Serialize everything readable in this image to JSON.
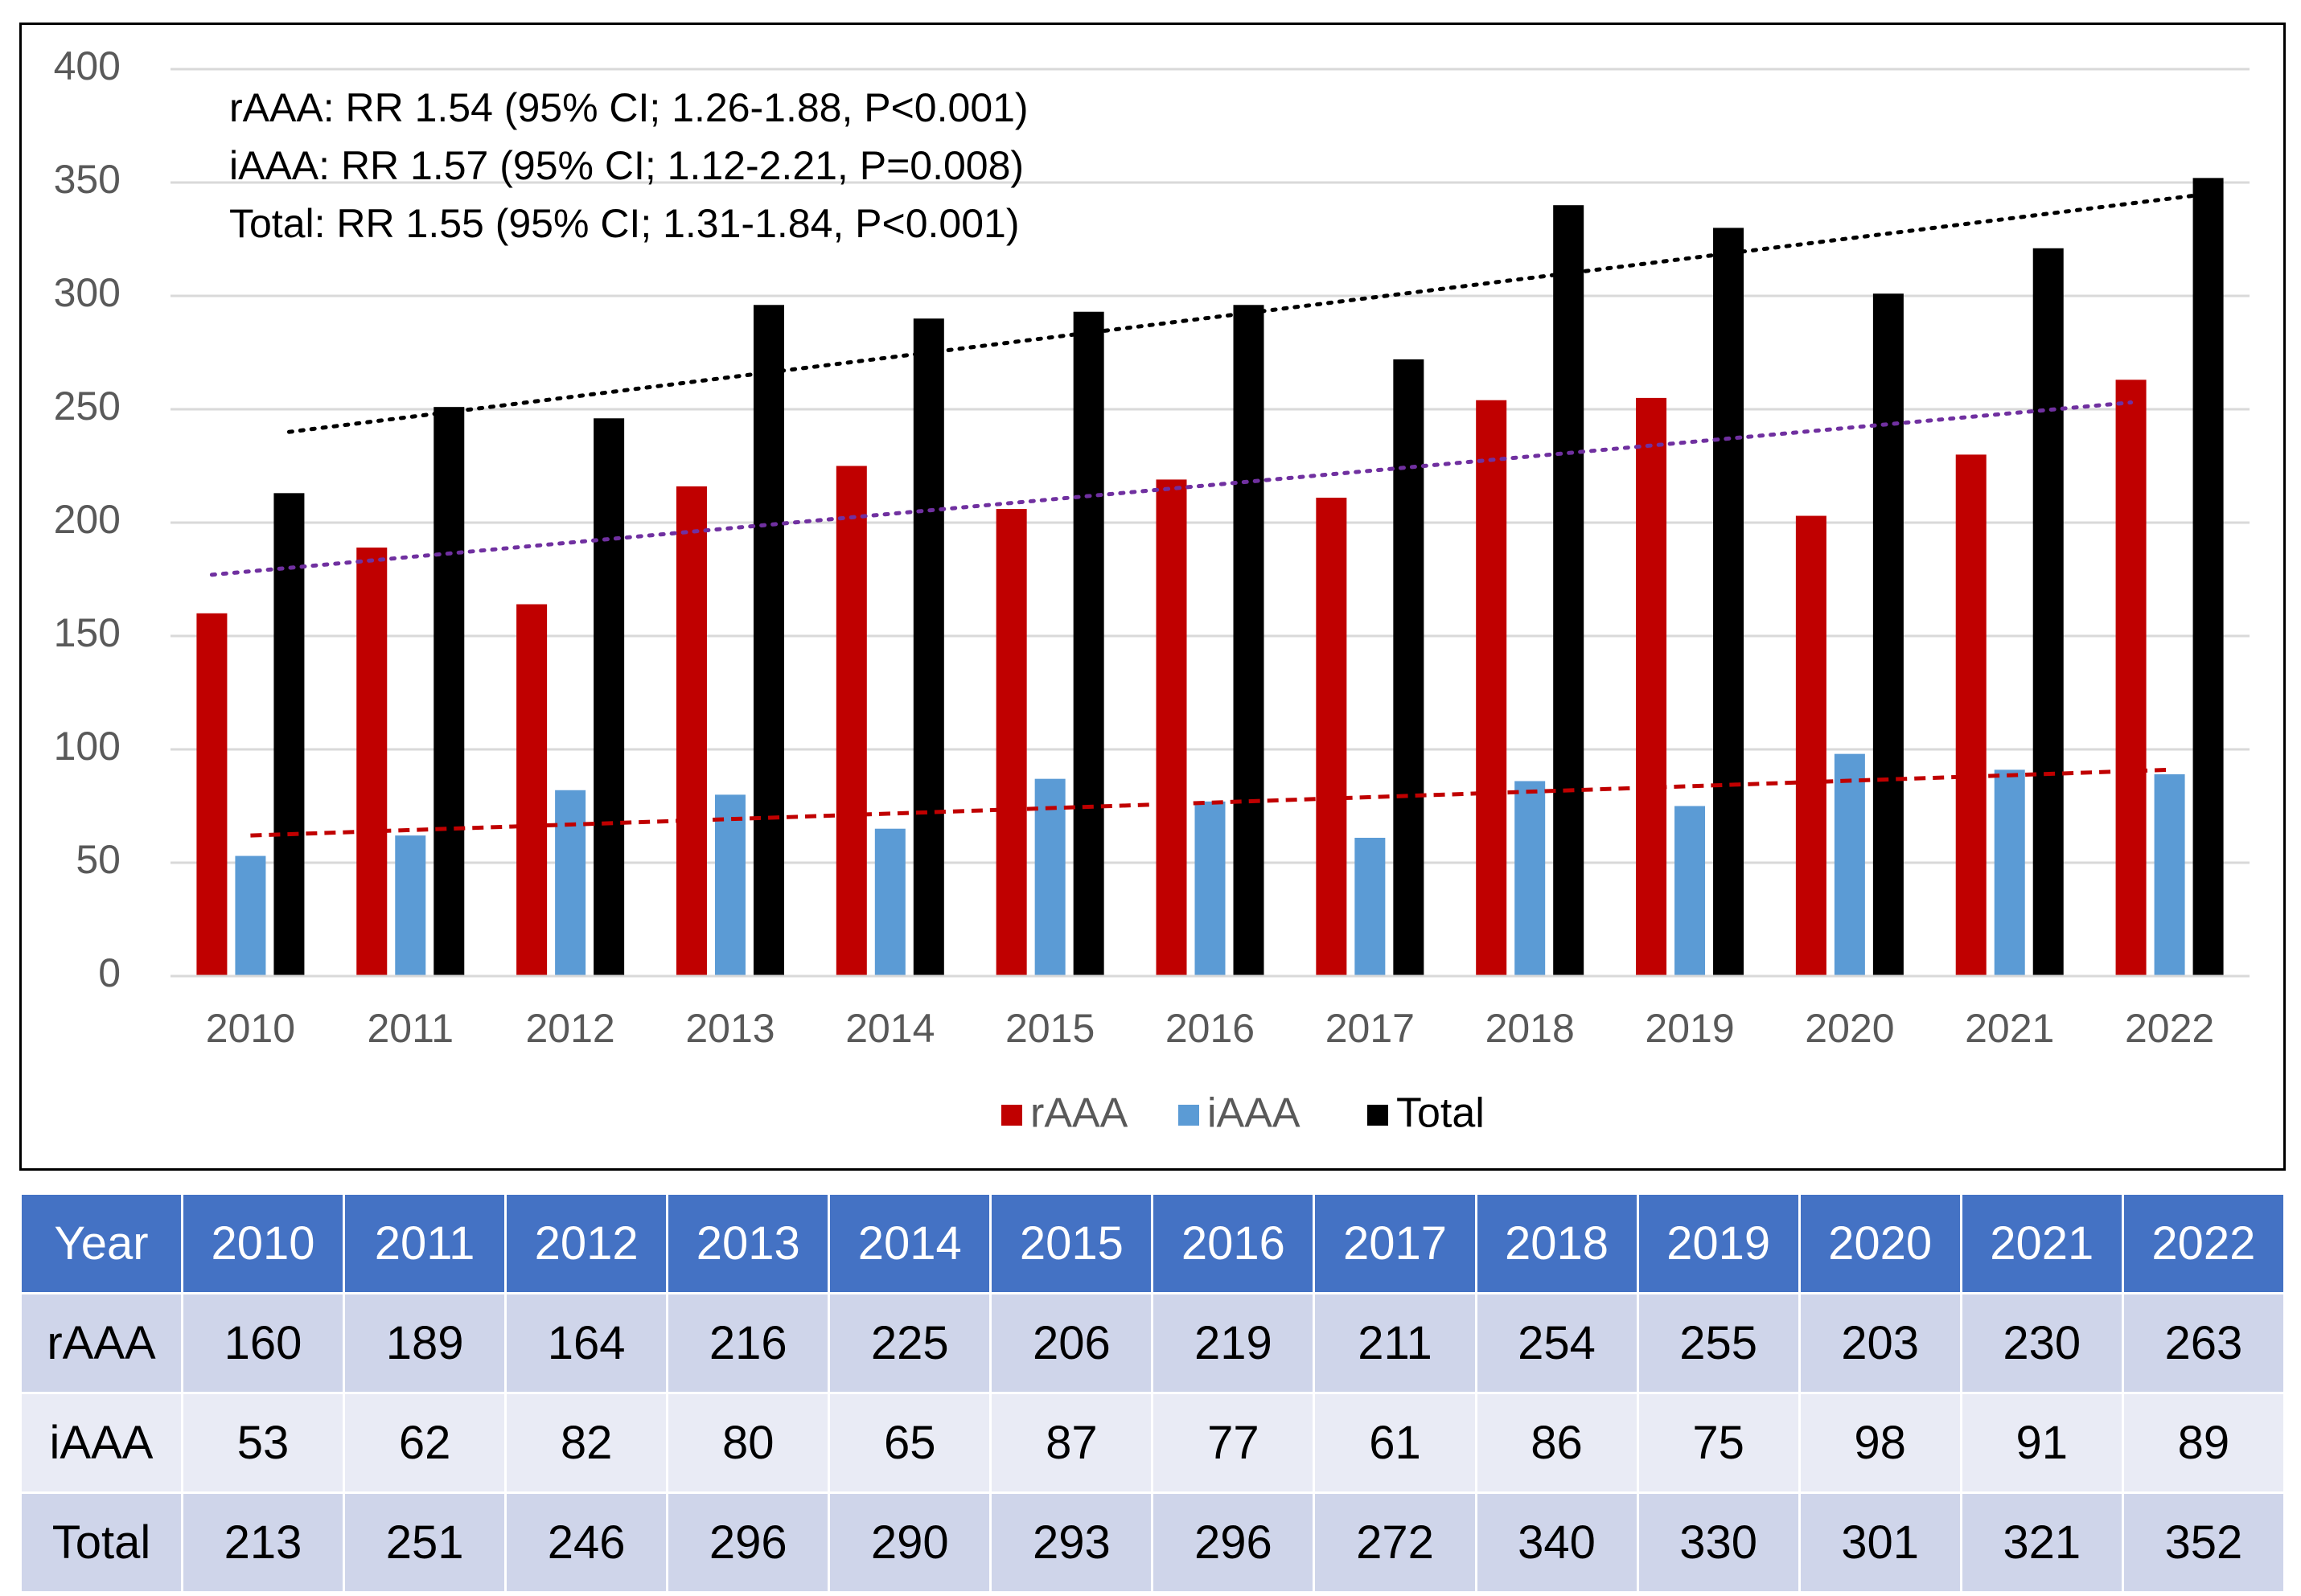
{
  "chart_data": {
    "type": "bar",
    "categories": [
      "2010",
      "2011",
      "2012",
      "2013",
      "2014",
      "2015",
      "2016",
      "2017",
      "2018",
      "2019",
      "2020",
      "2021",
      "2022"
    ],
    "series": [
      {
        "name": "rAAA",
        "color": "#c00000",
        "values": [
          160,
          189,
          164,
          216,
          225,
          206,
          219,
          211,
          254,
          255,
          203,
          230,
          263
        ]
      },
      {
        "name": "iAAA",
        "color": "#5b9bd5",
        "values": [
          53,
          62,
          82,
          80,
          65,
          87,
          77,
          61,
          86,
          75,
          98,
          91,
          89
        ]
      },
      {
        "name": "Total",
        "color": "#000000",
        "values": [
          213,
          251,
          246,
          296,
          290,
          293,
          296,
          272,
          340,
          330,
          301,
          321,
          352
        ]
      }
    ],
    "trendlines": [
      {
        "series": "Total",
        "style": "dotted",
        "color": "#000000",
        "start": 240,
        "end": 345
      },
      {
        "series": "rAAA",
        "style": "dotted",
        "color": "#7030a0",
        "start": 177,
        "end": 253
      },
      {
        "series": "iAAA",
        "style": "dashed",
        "color": "#c00000",
        "start": 62,
        "end": 91
      }
    ],
    "annotations": [
      "rAAA: RR 1.54 (95% CI; 1.26-1.88, P<0.001)",
      "iAAA: RR 1.57 (95% CI; 1.12-2.21, P=0.008)",
      "Total: RR 1.55 (95% CI; 1.31-1.84, P<0.001)"
    ],
    "yticks": [
      "0",
      "50",
      "100",
      "150",
      "200",
      "250",
      "300",
      "350",
      "400"
    ],
    "ylim": [
      0,
      400
    ],
    "grid": true,
    "legend_position": "bottom",
    "title": "",
    "xlabel": "",
    "ylabel": ""
  },
  "table": {
    "header_label": "Year",
    "years": [
      "2010",
      "2011",
      "2012",
      "2013",
      "2014",
      "2015",
      "2016",
      "2017",
      "2018",
      "2019",
      "2020",
      "2021",
      "2022"
    ],
    "rows": [
      {
        "label": "rAAA",
        "values": [
          "160",
          "189",
          "164",
          "216",
          "225",
          "206",
          "219",
          "211",
          "254",
          "255",
          "203",
          "230",
          "263"
        ]
      },
      {
        "label": "iAAA",
        "values": [
          "53",
          "62",
          "82",
          "80",
          "65",
          "87",
          "77",
          "61",
          "86",
          "75",
          "98",
          "91",
          "89"
        ]
      },
      {
        "label": "Total",
        "values": [
          "213",
          "251",
          "246",
          "296",
          "290",
          "293",
          "296",
          "272",
          "340",
          "330",
          "301",
          "321",
          "352"
        ]
      }
    ]
  }
}
